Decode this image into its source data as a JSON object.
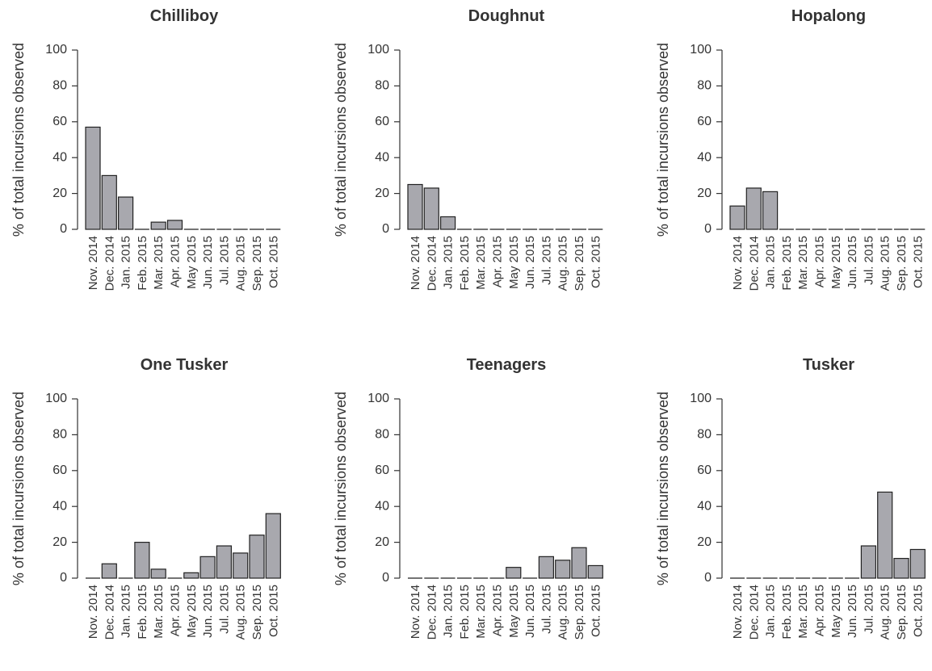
{
  "colors": {
    "bar_fill": "#a8a8ae",
    "bar_stroke": "#222222",
    "text": "#333333"
  },
  "chart_data": [
    {
      "type": "bar",
      "title": "Chilliboy",
      "ylabel": "% of total incursions observed",
      "xlabel": "",
      "ylim": [
        0,
        100
      ],
      "yticks": [
        0,
        20,
        40,
        60,
        80,
        100
      ],
      "grid": false,
      "categories": [
        "Nov. 2014",
        "Dec. 2014",
        "Jan. 2015",
        "Feb. 2015",
        "Mar. 2015",
        "Apr. 2015",
        "May 2015",
        "Jun. 2015",
        "Jul. 2015",
        "Aug. 2015",
        "Sep. 2015",
        "Oct. 2015"
      ],
      "values": [
        57,
        30,
        18,
        0,
        4,
        5,
        0,
        0,
        0,
        0,
        0,
        0
      ]
    },
    {
      "type": "bar",
      "title": "Doughnut",
      "ylabel": "% of total incursions observed",
      "xlabel": "",
      "ylim": [
        0,
        100
      ],
      "yticks": [
        0,
        20,
        40,
        60,
        80,
        100
      ],
      "grid": false,
      "categories": [
        "Nov. 2014",
        "Dec. 2014",
        "Jan. 2015",
        "Feb. 2015",
        "Mar. 2015",
        "Apr. 2015",
        "May 2015",
        "Jun. 2015",
        "Jul. 2015",
        "Aug. 2015",
        "Sep. 2015",
        "Oct. 2015"
      ],
      "values": [
        25,
        23,
        7,
        0,
        0,
        0,
        0,
        0,
        0,
        0,
        0,
        0
      ]
    },
    {
      "type": "bar",
      "title": "Hopalong",
      "ylabel": "% of total incursions observed",
      "xlabel": "",
      "ylim": [
        0,
        100
      ],
      "yticks": [
        0,
        20,
        40,
        60,
        80,
        100
      ],
      "grid": false,
      "categories": [
        "Nov. 2014",
        "Dec. 2014",
        "Jan. 2015",
        "Feb. 2015",
        "Mar. 2015",
        "Apr. 2015",
        "May 2015",
        "Jun. 2015",
        "Jul. 2015",
        "Aug. 2015",
        "Sep. 2015",
        "Oct. 2015"
      ],
      "values": [
        13,
        23,
        21,
        0,
        0,
        0,
        0,
        0,
        0,
        0,
        0,
        0
      ]
    },
    {
      "type": "bar",
      "title": "One Tusker",
      "ylabel": "% of total incursions observed",
      "xlabel": "",
      "ylim": [
        0,
        100
      ],
      "yticks": [
        0,
        20,
        40,
        60,
        80,
        100
      ],
      "grid": false,
      "categories": [
        "Nov. 2014",
        "Dec. 2014",
        "Jan. 2015",
        "Feb. 2015",
        "Mar. 2015",
        "Apr. 2015",
        "May 2015",
        "Jun. 2015",
        "Jul. 2015",
        "Aug. 2015",
        "Sep. 2015",
        "Oct. 2015"
      ],
      "values": [
        0,
        8,
        0,
        20,
        5,
        0,
        3,
        12,
        18,
        14,
        24,
        36
      ]
    },
    {
      "type": "bar",
      "title": "Teenagers",
      "ylabel": "% of total incursions observed",
      "xlabel": "",
      "ylim": [
        0,
        100
      ],
      "yticks": [
        0,
        20,
        40,
        60,
        80,
        100
      ],
      "grid": false,
      "categories": [
        "Nov. 2014",
        "Dec. 2014",
        "Jan. 2015",
        "Feb. 2015",
        "Mar. 2015",
        "Apr. 2015",
        "May 2015",
        "Jun. 2015",
        "Jul. 2015",
        "Aug. 2015",
        "Sep. 2015",
        "Oct. 2015"
      ],
      "values": [
        0,
        0,
        0,
        0,
        0,
        0,
        6,
        0,
        12,
        10,
        17,
        7
      ]
    },
    {
      "type": "bar",
      "title": "Tusker",
      "ylabel": "% of total incursions observed",
      "xlabel": "",
      "ylim": [
        0,
        100
      ],
      "yticks": [
        0,
        20,
        40,
        60,
        80,
        100
      ],
      "grid": false,
      "categories": [
        "Nov. 2014",
        "Dec. 2014",
        "Jan. 2015",
        "Feb. 2015",
        "Mar. 2015",
        "Apr. 2015",
        "May 2015",
        "Jun. 2015",
        "Jul. 2015",
        "Aug. 2015",
        "Sep. 2015",
        "Oct. 2015"
      ],
      "values": [
        0,
        0,
        0,
        0,
        0,
        0,
        0,
        0,
        18,
        48,
        11,
        16
      ]
    }
  ]
}
